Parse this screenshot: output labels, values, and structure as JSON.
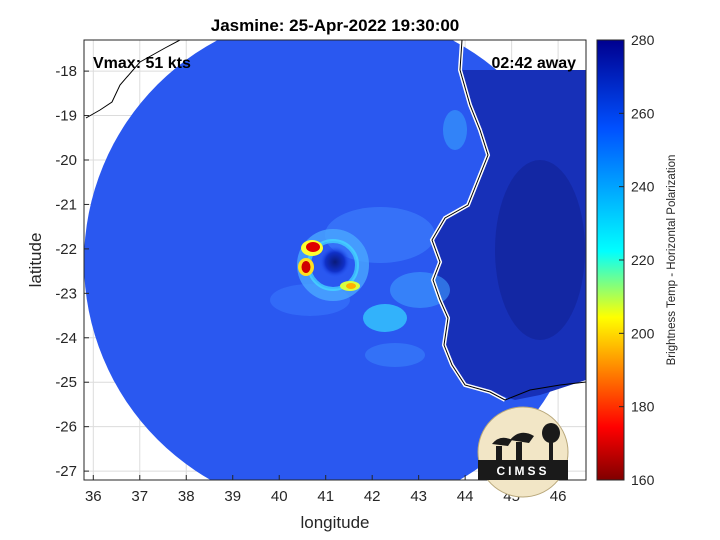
{
  "chart_data": {
    "type": "heatmap",
    "title": "Jasmine: 25-Apr-2022 19:30:00",
    "xlabel": "longitude",
    "ylabel": "latitude",
    "xlim": [
      35.8,
      46.6
    ],
    "ylim": [
      -27.2,
      -17.3
    ],
    "xticks": [
      36,
      37,
      38,
      39,
      40,
      41,
      42,
      43,
      44,
      45,
      46
    ],
    "yticks": [
      -18,
      -19,
      -20,
      -21,
      -22,
      -23,
      -24,
      -25,
      -26,
      -27
    ],
    "grid": true,
    "annotations": {
      "vmax": "Vmax: 51 kts",
      "away": "02:42 away"
    },
    "colorbar": {
      "label": "Brightness Temp - Horizontal Polarization",
      "min": 160,
      "max": 280,
      "ticks": [
        160,
        180,
        200,
        220,
        240,
        260,
        280
      ],
      "colormap": [
        "#800000",
        "#ff0000",
        "#ffff00",
        "#00ffff",
        "#0060ff",
        "#00008f"
      ]
    },
    "swath": {
      "center_lon": 41.2,
      "center_lat": -22.25
    },
    "storm_center": {
      "lon": 41.0,
      "lat": -22.3
    },
    "logo": "CIMSS"
  }
}
